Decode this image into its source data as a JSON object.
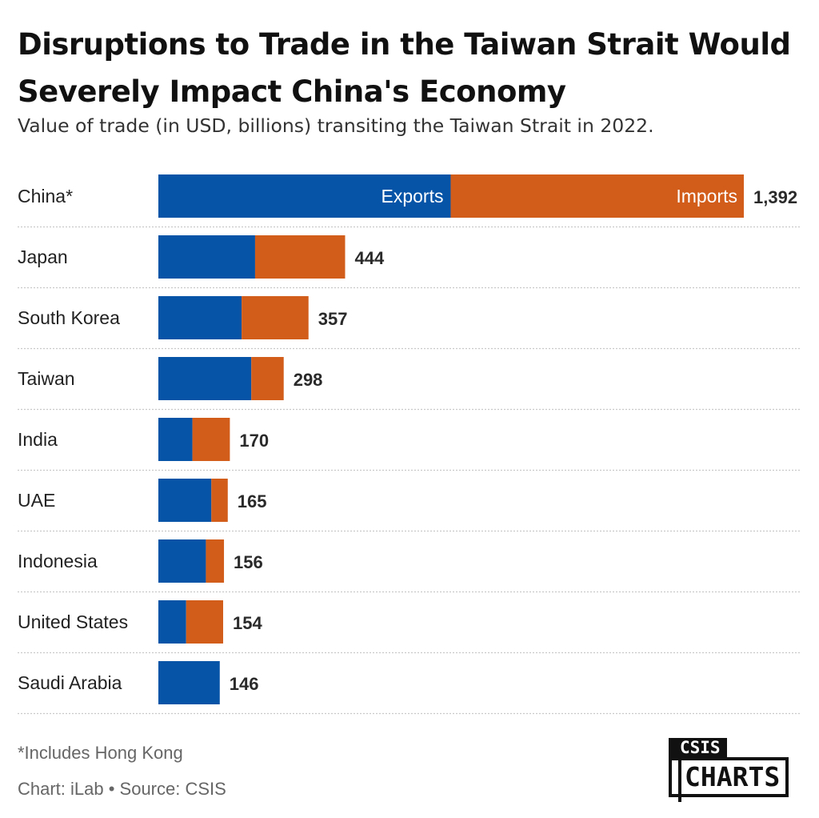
{
  "title": "Disruptions to Trade in the Taiwan Strait Would Severely Impact China's Economy",
  "subtitle": "Value of trade (in USD, billions) transiting the Taiwan Strait in 2022.",
  "footnote": "*Includes Hong Kong",
  "credits": "Chart: iLab • Source: CSIS",
  "logo": {
    "small": "CSIS",
    "big": "CHARTS"
  },
  "colors": {
    "exports": "#0654a8",
    "imports": "#d25c1a",
    "gridline": "#c9c9c9"
  },
  "chart_data": {
    "type": "bar",
    "orientation": "horizontal",
    "stacked": true,
    "title": "Disruptions to Trade in the Taiwan Strait Would Severely Impact China's Economy",
    "subtitle": "Value of trade (in USD, billions) transiting the Taiwan Strait in 2022.",
    "categories": [
      "China*",
      "Japan",
      "South Korea",
      "Taiwan",
      "India",
      "UAE",
      "Indonesia",
      "United States",
      "Saudi Arabia"
    ],
    "series": [
      {
        "name": "Exports",
        "color": "#0654a8",
        "values": [
          695,
          230,
          198,
          221,
          81,
          126,
          113,
          66,
          155
        ]
      },
      {
        "name": "Imports",
        "color": "#d25c1a",
        "values": [
          697,
          214,
          159,
          77,
          89,
          39,
          43,
          88,
          -9
        ]
      }
    ],
    "totals": [
      1392,
      444,
      357,
      298,
      170,
      165,
      156,
      154,
      146
    ],
    "total_labels": [
      "1,392",
      "444",
      "357",
      "298",
      "170",
      "165",
      "156",
      "154",
      "146"
    ],
    "xlim": [
      0,
      1392
    ],
    "grid": true,
    "legend": "inline labels on first bar"
  }
}
